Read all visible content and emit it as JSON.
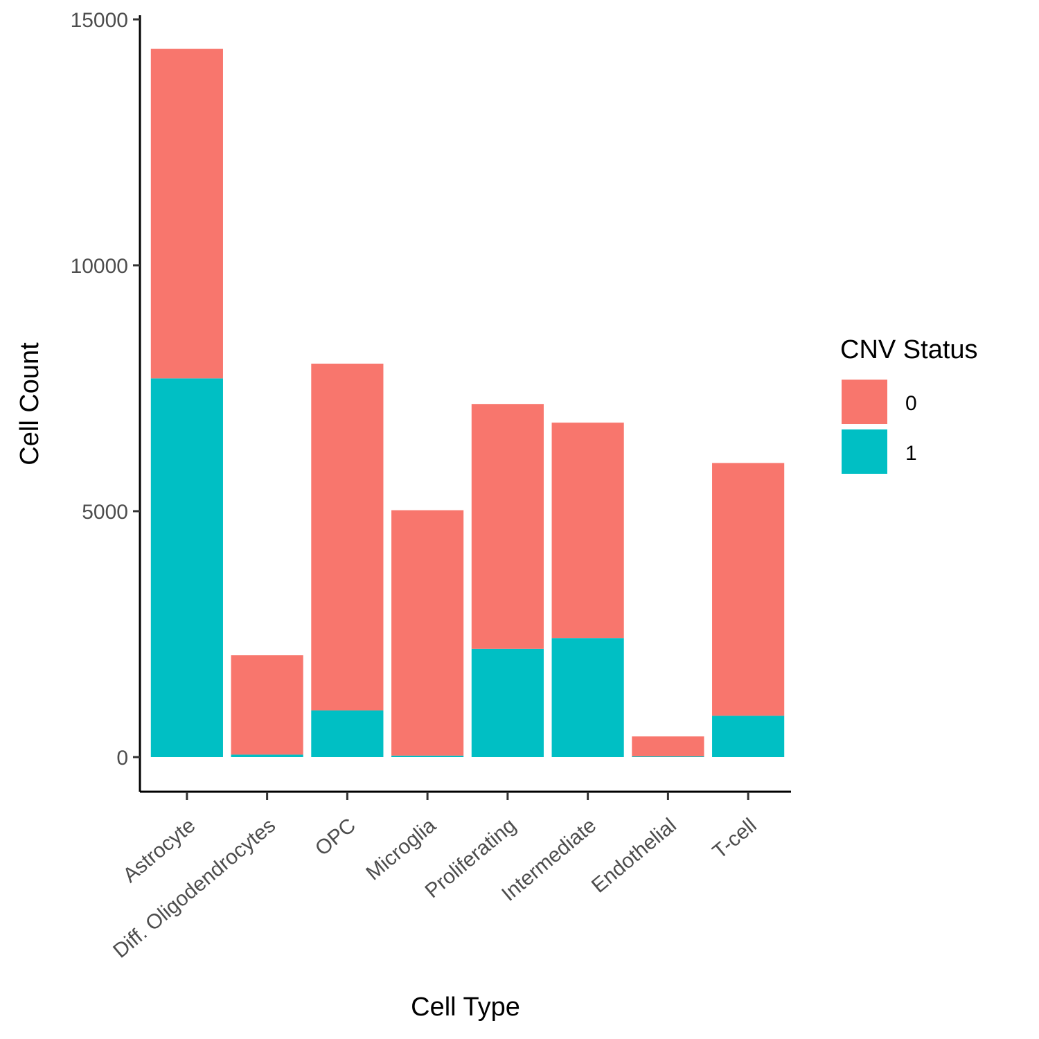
{
  "chart_data": {
    "type": "bar",
    "stacked": true,
    "categories": [
      "Astrocyte",
      "Diff. Oligodendrocytes",
      "OPC",
      "Microglia",
      "Proliferating",
      "Intermediate",
      "Endothelial",
      "T-cell"
    ],
    "series": [
      {
        "name": "1",
        "color": "#00BFC4",
        "values": [
          7700,
          50,
          950,
          30,
          2200,
          2420,
          15,
          840
        ]
      },
      {
        "name": "0",
        "color": "#F8766D",
        "values": [
          6700,
          2020,
          7050,
          4990,
          4980,
          4380,
          405,
          5140
        ]
      }
    ],
    "xlabel": "Cell Type",
    "ylabel": "Cell Count",
    "ylim": [
      -700,
      15300
    ],
    "yticks": [
      0,
      5000,
      10000,
      15000
    ],
    "legend": {
      "title": "CNV Status",
      "entries": [
        "0",
        "1"
      ],
      "placement": "right"
    },
    "grid": false
  }
}
